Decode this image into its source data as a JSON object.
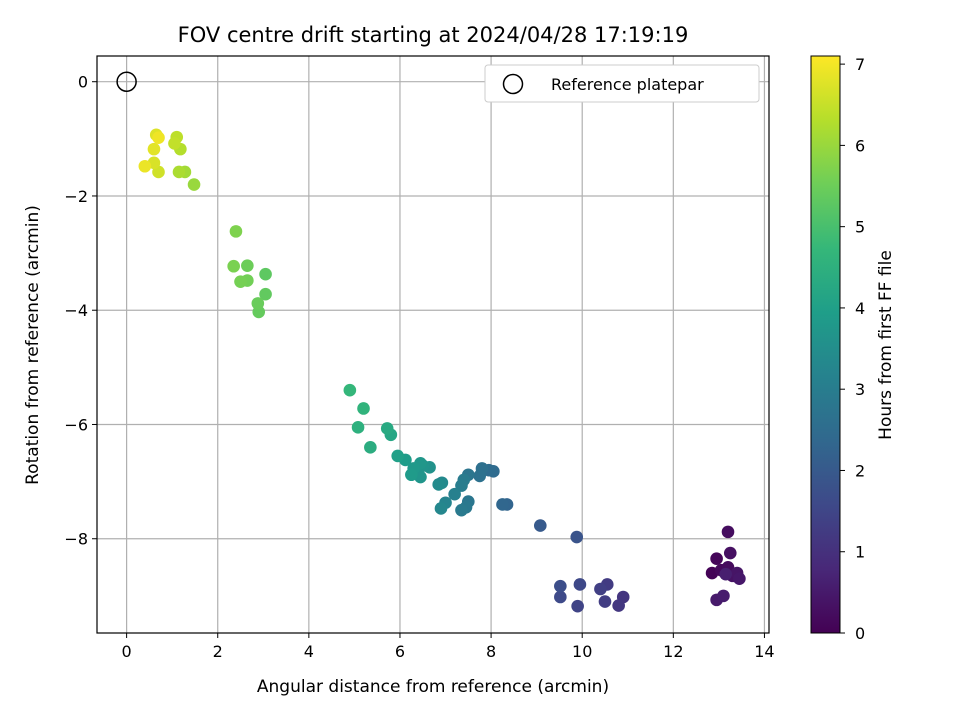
{
  "chart_data": {
    "type": "scatter",
    "title": "FOV centre drift starting at 2024/04/28 17:19:19",
    "xlabel": "Angular distance from reference (arcmin)",
    "ylabel": "Rotation from reference (arcmin)",
    "xlim": [
      -0.65,
      14.1
    ],
    "ylim": [
      -9.65,
      0.45
    ],
    "xticks": [
      0,
      2,
      4,
      6,
      8,
      10,
      12,
      14
    ],
    "yticks": [
      0,
      -2,
      -4,
      -6,
      -8
    ],
    "grid": true,
    "legend": {
      "placement": "top-right",
      "entries": [
        "Reference platepar"
      ]
    },
    "reference_point": {
      "x": 0,
      "y": 0
    },
    "colorbar": {
      "label": "Hours from first FF file",
      "range": [
        0,
        7.1
      ],
      "ticks": [
        0,
        1,
        2,
        3,
        4,
        5,
        6,
        7
      ],
      "colormap": [
        "#440154",
        "#482878",
        "#3e4989",
        "#31688e",
        "#26828e",
        "#1f9e89",
        "#35b779",
        "#6ece58",
        "#b5de2b",
        "#fde725"
      ]
    },
    "points": [
      {
        "x": 12.85,
        "y": -8.6,
        "h": 0.05
      },
      {
        "x": 12.95,
        "y": -8.35,
        "h": 0.1
      },
      {
        "x": 13.05,
        "y": -8.55,
        "h": 0.15
      },
      {
        "x": 13.2,
        "y": -8.5,
        "h": 0.2
      },
      {
        "x": 13.2,
        "y": -7.88,
        "h": 0.25
      },
      {
        "x": 13.25,
        "y": -8.25,
        "h": 0.3
      },
      {
        "x": 13.3,
        "y": -8.65,
        "h": 0.35
      },
      {
        "x": 13.4,
        "y": -8.6,
        "h": 0.4
      },
      {
        "x": 13.45,
        "y": -8.7,
        "h": 0.45
      },
      {
        "x": 12.95,
        "y": -9.07,
        "h": 0.5
      },
      {
        "x": 13.1,
        "y": -9.0,
        "h": 0.55
      },
      {
        "x": 13.15,
        "y": -8.62,
        "h": 0.6
      },
      {
        "x": 10.9,
        "y": -9.02,
        "h": 1.1
      },
      {
        "x": 10.8,
        "y": -9.17,
        "h": 1.15
      },
      {
        "x": 10.55,
        "y": -8.8,
        "h": 1.25
      },
      {
        "x": 10.5,
        "y": -9.1,
        "h": 1.3
      },
      {
        "x": 10.4,
        "y": -8.88,
        "h": 1.35
      },
      {
        "x": 9.9,
        "y": -9.18,
        "h": 1.45
      },
      {
        "x": 9.95,
        "y": -8.8,
        "h": 1.55
      },
      {
        "x": 9.52,
        "y": -9.02,
        "h": 1.6
      },
      {
        "x": 9.52,
        "y": -8.83,
        "h": 1.7
      },
      {
        "x": 9.88,
        "y": -7.97,
        "h": 1.85
      },
      {
        "x": 9.08,
        "y": -7.77,
        "h": 2.0
      },
      {
        "x": 8.35,
        "y": -7.4,
        "h": 2.3
      },
      {
        "x": 8.25,
        "y": -7.4,
        "h": 2.35
      },
      {
        "x": 8.05,
        "y": -6.82,
        "h": 2.45
      },
      {
        "x": 7.95,
        "y": -6.8,
        "h": 2.5
      },
      {
        "x": 7.8,
        "y": -6.77,
        "h": 2.6
      },
      {
        "x": 7.75,
        "y": -6.9,
        "h": 2.65
      },
      {
        "x": 7.5,
        "y": -6.88,
        "h": 2.75
      },
      {
        "x": 7.5,
        "y": -7.35,
        "h": 2.8
      },
      {
        "x": 7.45,
        "y": -7.45,
        "h": 2.85
      },
      {
        "x": 7.35,
        "y": -7.5,
        "h": 2.9
      },
      {
        "x": 7.4,
        "y": -6.97,
        "h": 2.95
      },
      {
        "x": 7.35,
        "y": -7.07,
        "h": 3.0
      },
      {
        "x": 7.2,
        "y": -7.22,
        "h": 3.1
      },
      {
        "x": 7.0,
        "y": -7.37,
        "h": 3.2
      },
      {
        "x": 6.9,
        "y": -7.47,
        "h": 3.3
      },
      {
        "x": 6.92,
        "y": -7.02,
        "h": 3.35
      },
      {
        "x": 6.85,
        "y": -7.05,
        "h": 3.4
      },
      {
        "x": 6.65,
        "y": -6.75,
        "h": 3.6
      },
      {
        "x": 6.5,
        "y": -6.72,
        "h": 3.65
      },
      {
        "x": 6.45,
        "y": -6.92,
        "h": 3.7
      },
      {
        "x": 6.45,
        "y": -6.68,
        "h": 3.75
      },
      {
        "x": 6.3,
        "y": -6.77,
        "h": 3.8
      },
      {
        "x": 6.25,
        "y": -6.88,
        "h": 3.85
      },
      {
        "x": 6.12,
        "y": -6.62,
        "h": 3.9
      },
      {
        "x": 5.95,
        "y": -6.55,
        "h": 4.0
      },
      {
        "x": 5.8,
        "y": -6.18,
        "h": 4.2
      },
      {
        "x": 5.72,
        "y": -6.07,
        "h": 4.3
      },
      {
        "x": 5.35,
        "y": -6.4,
        "h": 4.4
      },
      {
        "x": 5.08,
        "y": -6.05,
        "h": 4.5
      },
      {
        "x": 5.2,
        "y": -5.72,
        "h": 4.6
      },
      {
        "x": 4.9,
        "y": -5.4,
        "h": 4.7
      },
      {
        "x": 3.05,
        "y": -3.37,
        "h": 5.3
      },
      {
        "x": 3.05,
        "y": -3.72,
        "h": 5.35
      },
      {
        "x": 2.9,
        "y": -4.03,
        "h": 5.4
      },
      {
        "x": 2.88,
        "y": -3.88,
        "h": 5.45
      },
      {
        "x": 2.65,
        "y": -3.22,
        "h": 5.5
      },
      {
        "x": 2.65,
        "y": -3.48,
        "h": 5.55
      },
      {
        "x": 2.5,
        "y": -3.5,
        "h": 5.6
      },
      {
        "x": 2.35,
        "y": -3.23,
        "h": 5.65
      },
      {
        "x": 2.4,
        "y": -2.62,
        "h": 5.7
      },
      {
        "x": 1.48,
        "y": -1.8,
        "h": 6.0
      },
      {
        "x": 1.28,
        "y": -1.58,
        "h": 6.1
      },
      {
        "x": 1.15,
        "y": -1.58,
        "h": 6.2
      },
      {
        "x": 1.18,
        "y": -1.18,
        "h": 6.3
      },
      {
        "x": 1.1,
        "y": -0.97,
        "h": 6.4
      },
      {
        "x": 1.05,
        "y": -1.08,
        "h": 6.45
      },
      {
        "x": 0.7,
        "y": -1.58,
        "h": 6.6
      },
      {
        "x": 0.6,
        "y": -1.42,
        "h": 6.7
      },
      {
        "x": 0.65,
        "y": -0.93,
        "h": 6.75
      },
      {
        "x": 0.6,
        "y": -1.18,
        "h": 6.8
      },
      {
        "x": 0.4,
        "y": -1.48,
        "h": 6.9
      },
      {
        "x": 0.7,
        "y": -0.98,
        "h": 6.95
      }
    ]
  }
}
